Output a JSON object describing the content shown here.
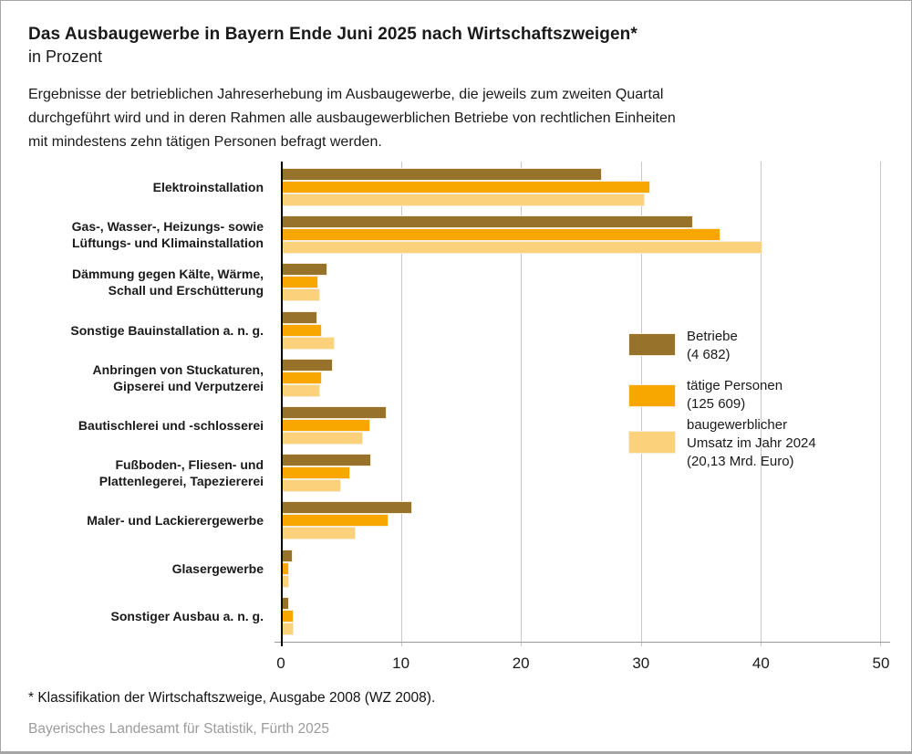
{
  "chart_data": {
    "type": "bar",
    "orientation": "horizontal",
    "title": "Das Ausbaugewerbe in Bayern Ende Juni 2025 nach Wirtschaftszweigen*",
    "subtitle": "in Prozent",
    "note": "Ergebnisse der betrieblichen Jahreserhebung im Ausbaugewerbe, die jeweils zum zweiten Quartal\ndurchgeführt wird und in deren Rahmen alle ausbaugewerblichen Betriebe von rechtlichen Einheiten\nmit mindestens zehn tätigen Personen befragt werden.",
    "categories": [
      "Elektroinstallation",
      "Gas-, Wasser-, Heizungs- sowie\nLüftungs- und Klimainstallation",
      "Dämmung gegen Kälte, Wärme,\nSchall und Erschütterung",
      "Sonstige Bauinstallation a. n. g.",
      "Anbringen von Stuckaturen,\nGipserei und Verputzerei",
      "Bautischlerei und -schlosserei",
      "Fußboden-, Fliesen- und\nPlattenlegerei, Tapeziererei",
      "Maler- und Lackierergewerbe",
      "Glasergewerbe",
      "Sonstiger Ausbau a. n. g."
    ],
    "series": [
      {
        "name": "Betriebe",
        "legend_label": "Betriebe\n(4 682)",
        "color": "#96722A",
        "values": [
          26.6,
          34.2,
          3.7,
          2.9,
          4.2,
          8.7,
          7.4,
          10.8,
          0.8,
          0.5
        ]
      },
      {
        "name": "tätige Personen",
        "legend_label": "tätige Personen\n(125 609)",
        "color": "#F8A600",
        "values": [
          30.6,
          36.5,
          3.0,
          3.3,
          3.3,
          7.3,
          5.6,
          8.8,
          0.5,
          0.9
        ]
      },
      {
        "name": "baugewerblicher Umsatz im Jahr 2024",
        "legend_label": "baugewerblicher\nUmsatz im Jahr 2024\n(20,13 Mrd. Euro)",
        "color": "#FCD17C",
        "values": [
          30.2,
          40.0,
          3.1,
          4.3,
          3.1,
          6.7,
          4.9,
          6.1,
          0.5,
          0.9
        ]
      }
    ],
    "xlim": [
      0,
      50
    ],
    "xticks": [
      0,
      10,
      20,
      30,
      40,
      50
    ],
    "grid": true,
    "legend_position": "right",
    "axis_colors": {
      "gridline": "#C8C8C8",
      "axis_line": "#9A9A9A",
      "zero_line": "#000000"
    }
  },
  "footer": {
    "footnote": "* Klassifikation der Wirtschaftszweige, Ausgabe 2008 (WZ 2008).",
    "source": "Bayerisches Landesamt für Statistik, Fürth 2025"
  }
}
